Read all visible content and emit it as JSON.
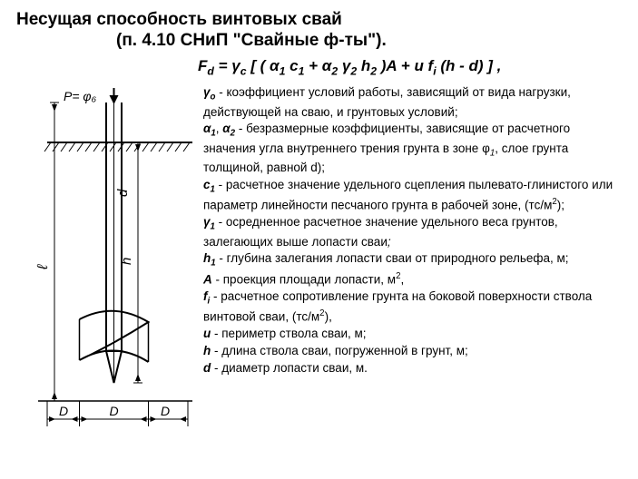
{
  "title": "Несущая способность винтовых свай",
  "subtitle": "(п. 4.10 СНиП \"Свайные ф-ты\").",
  "formula_html": "F<sub>d</sub> = γ<sub>c</sub> [ ( α<sub>1</sub> c<sub>1</sub> + α<sub>2</sub> γ<sub>2</sub> h<sub>2</sub> )A + u f<sub>i</sub> (h - d) ] ,",
  "defs": [
    "<span class='sym'>γ<sub>o</sub></span> -  коэффициент условий работы, зависящий от вида нагрузки, действующей на сваю, и грунтовых условий;",
    "<span class='sym'>α<sub>1</sub></span>, <span class='sym'>α<sub>2</sub></span> - безразмерные коэффициенты,  зависящие от расчетного значения угла внутреннего трения грунта в  зоне φ<sub>1</sub>,   слое грунта толщиной, равной d);",
    "<span class='sym'>c<sub>1</sub></span> - расчетное значение удельного сцепления пылевато-глинистого или параметр линейности песчаного грунта в рабочей зоне, (тс/м<sup>2</sup>);",
    "<span class='sym'>γ<sub>1</sub></span> - осредненное расчетное значение удельного веса грунтов, залегающих выше лопасти сваи<i>;</i>",
    "<span class='sym'>h<sub>1</sub></span> - глубина залегания лопасти сваи от природного рельефа, м;",
    "<span class='sym'>A</span> - проекция площади лопасти, м<sup>2</sup>,",
    "<span class='sym'>f<sub>i</sub></span> - расчетное сопротивление грунта на боковой поверхности ствола винтовой сваи, (тс/м<sup>2</sup>),",
    "<span class='sym'>u</span> - периметр ствола сваи, м;",
    "<span class='sym'>h</span> - длина ствола сваи, погруженной в грунт, м;",
    "<span class='sym'>d</span> - диаметр лопасти сваи, м."
  ],
  "diagram": {
    "load_label": "P= φ₆",
    "dim_l": "ℓ",
    "dim_h": "h",
    "dim_d_small": "d",
    "dim_D_left": "D",
    "dim_D_mid": "D",
    "dim_D_right": "D",
    "stroke": "#000000",
    "ground_hatch": "#000000"
  }
}
